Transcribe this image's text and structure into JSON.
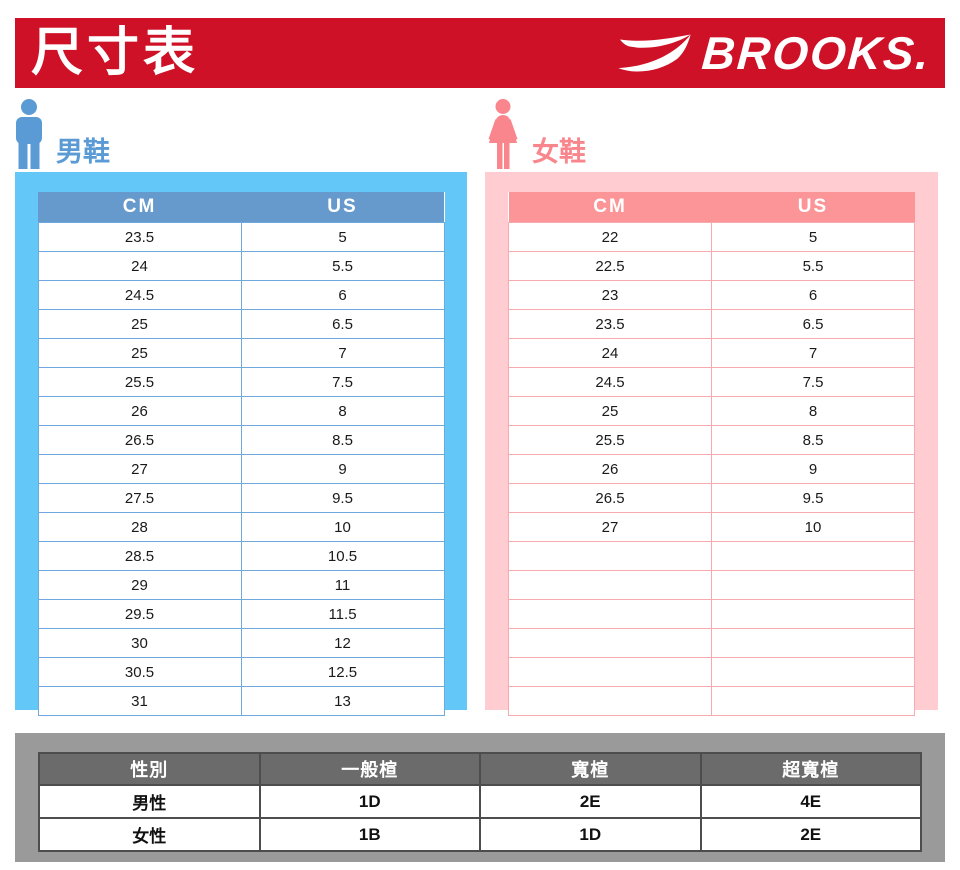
{
  "header": {
    "title": "尺寸表",
    "brand": "BROOKS."
  },
  "men": {
    "label": "男鞋",
    "columns": [
      "CM",
      "US"
    ],
    "rows": [
      [
        "23.5",
        "5"
      ],
      [
        "24",
        "5.5"
      ],
      [
        "24.5",
        "6"
      ],
      [
        "25",
        "6.5"
      ],
      [
        "25",
        "7"
      ],
      [
        "25.5",
        "7.5"
      ],
      [
        "26",
        "8"
      ],
      [
        "26.5",
        "8.5"
      ],
      [
        "27",
        "9"
      ],
      [
        "27.5",
        "9.5"
      ],
      [
        "28",
        "10"
      ],
      [
        "28.5",
        "10.5"
      ],
      [
        "29",
        "11"
      ],
      [
        "29.5",
        "11.5"
      ],
      [
        "30",
        "12"
      ],
      [
        "30.5",
        "12.5"
      ],
      [
        "31",
        "13"
      ]
    ],
    "empty_rows": 0
  },
  "women": {
    "label": "女鞋",
    "columns": [
      "CM",
      "US"
    ],
    "rows": [
      [
        "22",
        "5"
      ],
      [
        "22.5",
        "5.5"
      ],
      [
        "23",
        "6"
      ],
      [
        "23.5",
        "6.5"
      ],
      [
        "24",
        "7"
      ],
      [
        "24.5",
        "7.5"
      ],
      [
        "25",
        "8"
      ],
      [
        "25.5",
        "8.5"
      ],
      [
        "26",
        "9"
      ],
      [
        "26.5",
        "9.5"
      ],
      [
        "27",
        "10"
      ]
    ],
    "empty_rows": 6
  },
  "width_table": {
    "columns": [
      "性別",
      "一般楦",
      "寬楦",
      "超寬楦"
    ],
    "rows": [
      [
        "男性",
        "1D",
        "2E",
        "4E"
      ],
      [
        "女性",
        "1B",
        "1D",
        "2E"
      ]
    ]
  },
  "colors": {
    "banner_red": "#CE1126",
    "men_panel": "#63C8F8",
    "men_header": "#6699CC",
    "men_accent": "#5B9BD5",
    "men_border": "#6FA8DC",
    "women_panel": "#FFCDD1",
    "women_header": "#FB9598",
    "women_accent": "#F9868C",
    "women_border": "#F8ABAE",
    "gray_panel": "#9A9A9A",
    "gray_header": "#6B6B6B",
    "gray_border": "#4D4D4D"
  }
}
